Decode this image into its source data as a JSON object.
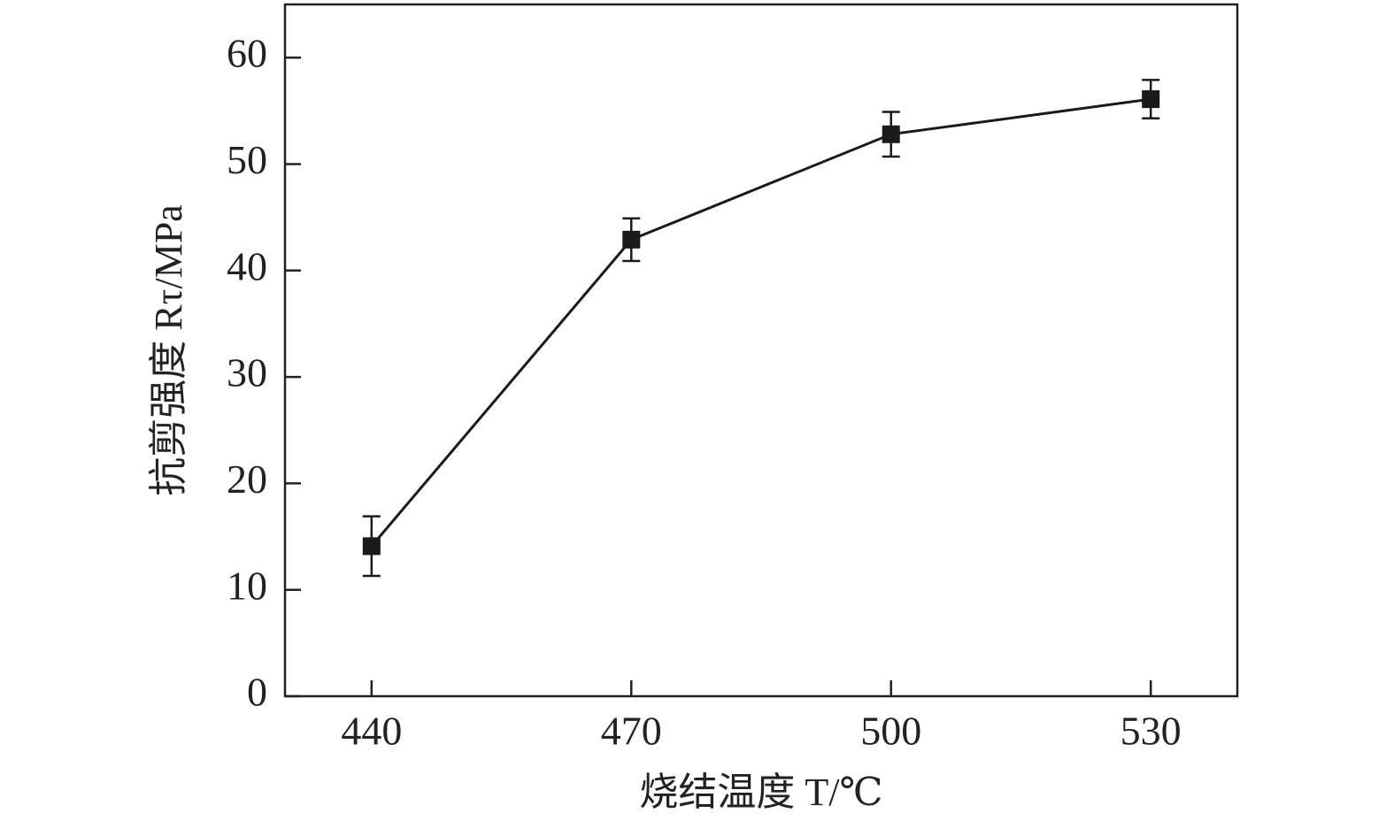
{
  "chart_data": {
    "type": "line",
    "x_label": "烧结温度 T/℃",
    "y_label": "抗剪强度 Rτ/MPa",
    "x": [
      440,
      470,
      500,
      530
    ],
    "series": [
      {
        "color": "#1a1a1a",
        "values": [
          14.1,
          42.9,
          52.8,
          56.1
        ],
        "errors": [
          2.8,
          2.0,
          2.1,
          1.8
        ]
      }
    ],
    "xlim": [
      430,
      540
    ],
    "xticks": [
      440,
      470,
      500,
      530
    ],
    "ylim": [
      0,
      65
    ],
    "yticks": [
      0,
      10,
      20,
      30,
      40,
      50,
      60
    ],
    "grid": false
  }
}
